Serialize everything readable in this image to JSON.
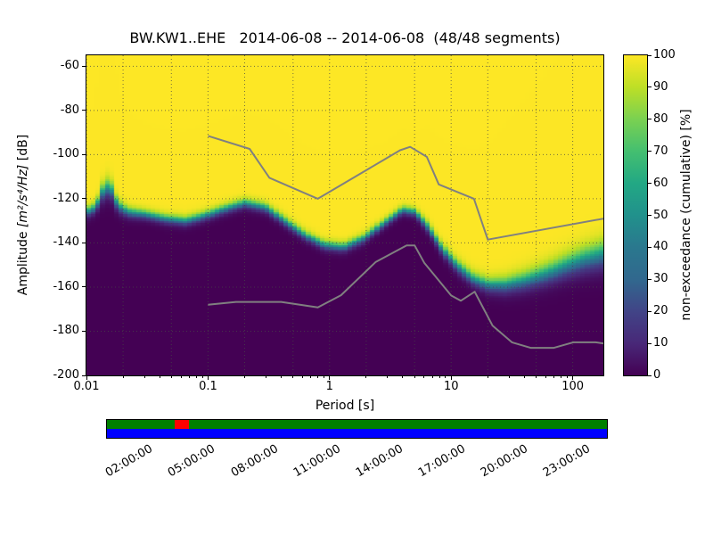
{
  "title": "BW.KW1..EHE   2014-06-08 -- 2014-06-08  (48/48 segments)",
  "axes": {
    "xlabel": "Period [s]",
    "ylabel_prefix": "Amplitude ",
    "ylabel_units": "[m²/s⁴/Hz]",
    "ylabel_suffix": " [dB]",
    "x_ticks": [
      {
        "value": 0.01,
        "label": "0.01"
      },
      {
        "value": 0.1,
        "label": "0.1"
      },
      {
        "value": 1,
        "label": "1"
      },
      {
        "value": 10,
        "label": "10"
      },
      {
        "value": 100,
        "label": "100"
      }
    ],
    "y_ticks": [
      {
        "value": -60,
        "label": "-60"
      },
      {
        "value": -80,
        "label": "-80"
      },
      {
        "value": -100,
        "label": "-100"
      },
      {
        "value": -120,
        "label": "-120"
      },
      {
        "value": -140,
        "label": "-140"
      },
      {
        "value": -160,
        "label": "-160"
      },
      {
        "value": -180,
        "label": "-180"
      },
      {
        "value": -200,
        "label": "-200"
      }
    ]
  },
  "colorbar": {
    "label": "non-exceedance (cumulative) [%]",
    "min": 0,
    "max": 100,
    "ticks": [
      {
        "value": 0,
        "label": "0"
      },
      {
        "value": 10,
        "label": "10"
      },
      {
        "value": 20,
        "label": "20"
      },
      {
        "value": 30,
        "label": "30"
      },
      {
        "value": 40,
        "label": "40"
      },
      {
        "value": 50,
        "label": "50"
      },
      {
        "value": 60,
        "label": "60"
      },
      {
        "value": 70,
        "label": "70"
      },
      {
        "value": 80,
        "label": "80"
      },
      {
        "value": 90,
        "label": "90"
      },
      {
        "value": 100,
        "label": "100"
      }
    ],
    "colormap": "viridis",
    "viridis_stops": [
      "#440154",
      "#482878",
      "#414487",
      "#31688e",
      "#2a788e",
      "#21918c",
      "#22a884",
      "#44bf70",
      "#7ad151",
      "#bddf26",
      "#fde725"
    ]
  },
  "chart_data": {
    "type": "heatmap",
    "title": "BW.KW1..EHE 2014-06-08 -- 2014-06-08 (48/48 segments)",
    "x_axis": {
      "label": "Period [s]",
      "scale": "log",
      "min": 0.01,
      "max": 178.6
    },
    "y_axis": {
      "label": "Amplitude [m^2/s^4/Hz] [dB]",
      "min": -200,
      "max": -55
    },
    "z_axis": {
      "label": "non-exceedance (cumulative) [%]",
      "min": 0,
      "max": 100
    },
    "psd_mode_curve": {
      "periods": [
        0.01,
        0.012,
        0.0135,
        0.0155,
        0.018,
        0.022,
        0.03,
        0.045,
        0.065,
        0.09,
        0.13,
        0.2,
        0.3,
        0.45,
        0.65,
        0.9,
        1.3,
        1.9,
        2.8,
        4.0,
        5.0,
        6.5,
        8.5,
        11,
        15,
        20,
        28,
        40,
        60,
        90,
        130,
        178.6
      ],
      "db": [
        -126,
        -124,
        -117,
        -114,
        -123,
        -126,
        -127,
        -129,
        -130,
        -128,
        -125,
        -122,
        -124,
        -131,
        -137,
        -141,
        -142,
        -138,
        -131,
        -125,
        -126,
        -133,
        -143,
        -150,
        -156,
        -159,
        -159,
        -157,
        -154,
        -150,
        -147,
        -145
      ],
      "spread_db": [
        5,
        5,
        8,
        9,
        6,
        5,
        4.5,
        4.5,
        4.5,
        4.5,
        4.5,
        4.5,
        4.5,
        4.5,
        4.5,
        4.5,
        4.5,
        4.5,
        4,
        4,
        4,
        5,
        5.5,
        6,
        6.5,
        7,
        8,
        9,
        10,
        11,
        12,
        13
      ]
    },
    "noise_models": {
      "color": "#808080",
      "nhnm": {
        "periods": [
          0.1,
          0.22,
          0.32,
          0.8,
          3.8,
          4.6,
          6.3,
          7.9,
          15.4,
          20.0,
          178.6
        ],
        "db": [
          -91.5,
          -97.4,
          -110.5,
          -120.0,
          -98.0,
          -96.5,
          -101.0,
          -113.5,
          -120.0,
          -138.5,
          -129.0
        ]
      },
      "nlnm": {
        "periods": [
          0.1,
          0.17,
          0.4,
          0.8,
          1.24,
          2.4,
          4.3,
          5.0,
          6.0,
          10.0,
          12.0,
          15.6,
          21.9,
          31.6,
          45.0,
          70.0,
          101.0,
          154.0,
          178.6
        ],
        "db": [
          -168.0,
          -166.7,
          -166.7,
          -169.2,
          -163.7,
          -148.6,
          -141.1,
          -141.1,
          -149.0,
          -163.8,
          -166.2,
          -162.1,
          -177.5,
          -185.0,
          -187.5,
          -187.5,
          -185.0,
          -185.0,
          -185.5
        ]
      }
    }
  },
  "timeline": {
    "hours_total": 24,
    "coverage_color": "#008000",
    "extent_color": "#0000ff",
    "gap": {
      "start_hour": 3.25,
      "end_hour": 3.95,
      "color": "#ff0000"
    },
    "labels": [
      {
        "hour": 2,
        "label": "02:00:00"
      },
      {
        "hour": 5,
        "label": "05:00:00"
      },
      {
        "hour": 8,
        "label": "08:00:00"
      },
      {
        "hour": 11,
        "label": "11:00:00"
      },
      {
        "hour": 14,
        "label": "14:00:00"
      },
      {
        "hour": 17,
        "label": "17:00:00"
      },
      {
        "hour": 20,
        "label": "20:00:00"
      },
      {
        "hour": 23,
        "label": "23:00:00"
      }
    ]
  }
}
